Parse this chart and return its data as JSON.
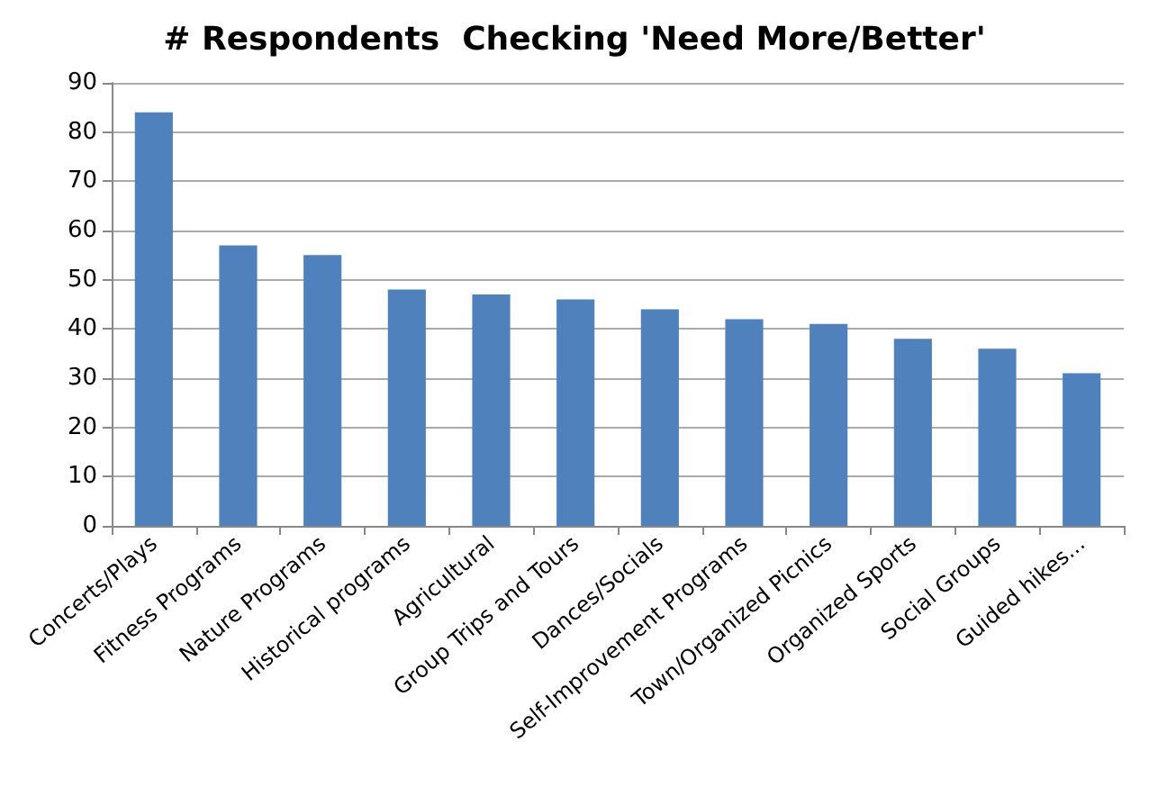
{
  "chart_data": {
    "type": "bar",
    "title": "# Respondents  Checking 'Need More/Better'",
    "categories": [
      "Concerts/Plays",
      "Fitness Programs",
      "Nature Programs",
      "Historical programs",
      "Agricultural",
      "Group Trips and Tours",
      "Dances/Socials",
      "Self-Improvement Programs",
      "Town/Organized Picnics",
      "Organized Sports",
      "Social Groups",
      "Guided hikes..."
    ],
    "values": [
      84,
      57,
      55,
      48,
      47,
      46,
      44,
      42,
      41,
      38,
      36,
      31
    ],
    "color": "#4f81bd",
    "ylim": [
      0,
      90
    ],
    "yticks": [
      0,
      10,
      20,
      30,
      40,
      50,
      60,
      70,
      80,
      90
    ],
    "grid": "y"
  }
}
